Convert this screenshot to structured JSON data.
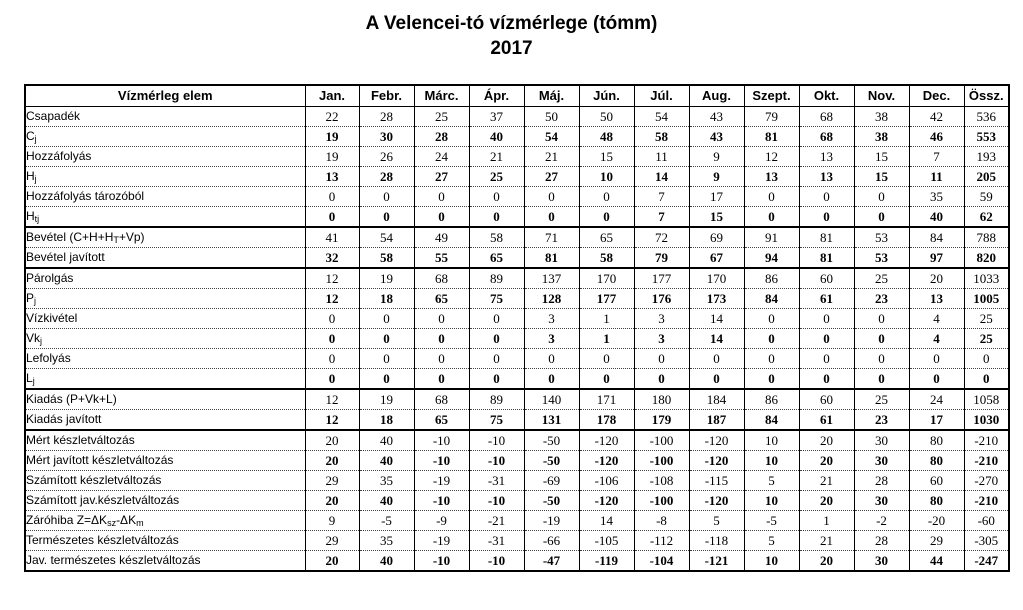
{
  "title": "A  Velencei-tó  vízmérlege  (tómm)",
  "year": "2017",
  "header": {
    "element": "Vízmérleg elem",
    "months": [
      "Jan.",
      "Febr.",
      "Márc.",
      "Ápr.",
      "Máj.",
      "Jún.",
      "Júl.",
      "Aug.",
      "Szept.",
      "Okt.",
      "Nov.",
      "Dec."
    ],
    "total": "Össz."
  },
  "rows": [
    {
      "label": "Csapadék",
      "sub": "",
      "bold": false,
      "values": [
        "22",
        "28",
        "25",
        "37",
        "50",
        "50",
        "54",
        "43",
        "79",
        "68",
        "38",
        "42",
        "536"
      ]
    },
    {
      "label": "C",
      "sub": "j",
      "bold": true,
      "values": [
        "19",
        "30",
        "28",
        "40",
        "54",
        "48",
        "58",
        "43",
        "81",
        "68",
        "38",
        "46",
        "553"
      ]
    },
    {
      "label": "Hozzáfolyás",
      "sub": "",
      "bold": false,
      "values": [
        "19",
        "26",
        "24",
        "21",
        "21",
        "15",
        "11",
        "9",
        "12",
        "13",
        "15",
        "7",
        "193"
      ]
    },
    {
      "label": "H",
      "sub": "j",
      "bold": true,
      "values": [
        "13",
        "28",
        "27",
        "25",
        "27",
        "10",
        "14",
        "9",
        "13",
        "13",
        "15",
        "11",
        "205"
      ]
    },
    {
      "label": "Hozzáfolyás tározóból",
      "sub": "",
      "bold": false,
      "values": [
        "0",
        "0",
        "0",
        "0",
        "0",
        "0",
        "7",
        "17",
        "0",
        "0",
        "0",
        "35",
        "59"
      ]
    },
    {
      "label": "H",
      "sub": "tj",
      "bold": true,
      "values": [
        "0",
        "0",
        "0",
        "0",
        "0",
        "0",
        "7",
        "15",
        "0",
        "0",
        "0",
        "40",
        "62"
      ]
    },
    {
      "label": "Bevétel (C+H+H",
      "sub": "T",
      "after": "+Vp)",
      "bold": false,
      "group": true,
      "values": [
        "41",
        "54",
        "49",
        "58",
        "71",
        "65",
        "72",
        "69",
        "91",
        "81",
        "53",
        "84",
        "788"
      ]
    },
    {
      "label": "Bevétel javított",
      "sub": "",
      "bold": true,
      "values": [
        "32",
        "58",
        "55",
        "65",
        "81",
        "58",
        "79",
        "67",
        "94",
        "81",
        "53",
        "97",
        "820"
      ]
    },
    {
      "label": "Párolgás",
      "sub": "",
      "bold": false,
      "group": true,
      "values": [
        "12",
        "19",
        "68",
        "89",
        "137",
        "170",
        "177",
        "170",
        "86",
        "60",
        "25",
        "20",
        "1033"
      ]
    },
    {
      "label": "P",
      "sub": "j",
      "bold": true,
      "values": [
        "12",
        "18",
        "65",
        "75",
        "128",
        "177",
        "176",
        "173",
        "84",
        "61",
        "23",
        "13",
        "1005"
      ]
    },
    {
      "label": "Vízkivétel",
      "sub": "",
      "bold": false,
      "values": [
        "0",
        "0",
        "0",
        "0",
        "3",
        "1",
        "3",
        "14",
        "0",
        "0",
        "0",
        "4",
        "25"
      ]
    },
    {
      "label": "Vk",
      "sub": "j",
      "bold": true,
      "values": [
        "0",
        "0",
        "0",
        "0",
        "3",
        "1",
        "3",
        "14",
        "0",
        "0",
        "0",
        "4",
        "25"
      ]
    },
    {
      "label": "Lefolyás",
      "sub": "",
      "bold": false,
      "values": [
        "0",
        "0",
        "0",
        "0",
        "0",
        "0",
        "0",
        "0",
        "0",
        "0",
        "0",
        "0",
        "0"
      ]
    },
    {
      "label": "L",
      "sub": "j",
      "bold": true,
      "values": [
        "0",
        "0",
        "0",
        "0",
        "0",
        "0",
        "0",
        "0",
        "0",
        "0",
        "0",
        "0",
        "0"
      ]
    },
    {
      "label": "Kiadás (P+Vk+L)",
      "sub": "",
      "bold": false,
      "group": true,
      "values": [
        "12",
        "19",
        "68",
        "89",
        "140",
        "171",
        "180",
        "184",
        "86",
        "60",
        "25",
        "24",
        "1058"
      ]
    },
    {
      "label": "Kiadás javított",
      "sub": "",
      "bold": true,
      "values": [
        "12",
        "18",
        "65",
        "75",
        "131",
        "178",
        "179",
        "187",
        "84",
        "61",
        "23",
        "17",
        "1030"
      ]
    },
    {
      "label": "Mért készletváltozás",
      "sub": "",
      "bold": false,
      "group": true,
      "values": [
        "20",
        "40",
        "-10",
        "-10",
        "-50",
        "-120",
        "-100",
        "-120",
        "10",
        "20",
        "30",
        "80",
        "-210"
      ]
    },
    {
      "label": "Mért javított készletváltozás",
      "sub": "",
      "bold": true,
      "values": [
        "20",
        "40",
        "-10",
        "-10",
        "-50",
        "-120",
        "-100",
        "-120",
        "10",
        "20",
        "30",
        "80",
        "-210"
      ]
    },
    {
      "label": "Számított készletváltozás",
      "sub": "",
      "bold": false,
      "values": [
        "29",
        "35",
        "-19",
        "-31",
        "-69",
        "-106",
        "-108",
        "-115",
        "5",
        "21",
        "28",
        "60",
        "-270"
      ]
    },
    {
      "label": "Számított jav.készletváltozás",
      "sub": "",
      "bold": true,
      "values": [
        "20",
        "40",
        "-10",
        "-10",
        "-50",
        "-120",
        "-100",
        "-120",
        "10",
        "20",
        "30",
        "80",
        "-210"
      ]
    },
    {
      "label": "Záróhiba  Z=ΔK",
      "sub": "sz",
      "after": "-ΔK",
      "sub2": "m",
      "bold": false,
      "values": [
        "9",
        "-5",
        "-9",
        "-21",
        "-19",
        "14",
        "-8",
        "5",
        "-5",
        "1",
        "-2",
        "-20",
        "-60"
      ]
    },
    {
      "label": "Természetes készletváltozás",
      "sub": "",
      "bold": false,
      "values": [
        "29",
        "35",
        "-19",
        "-31",
        "-66",
        "-105",
        "-112",
        "-118",
        "5",
        "21",
        "28",
        "29",
        "-305"
      ]
    },
    {
      "label": "Jav. természetes készletváltozás",
      "sub": "",
      "bold": true,
      "values": [
        "20",
        "40",
        "-10",
        "-10",
        "-47",
        "-119",
        "-104",
        "-121",
        "10",
        "20",
        "30",
        "44",
        "-247"
      ]
    }
  ]
}
